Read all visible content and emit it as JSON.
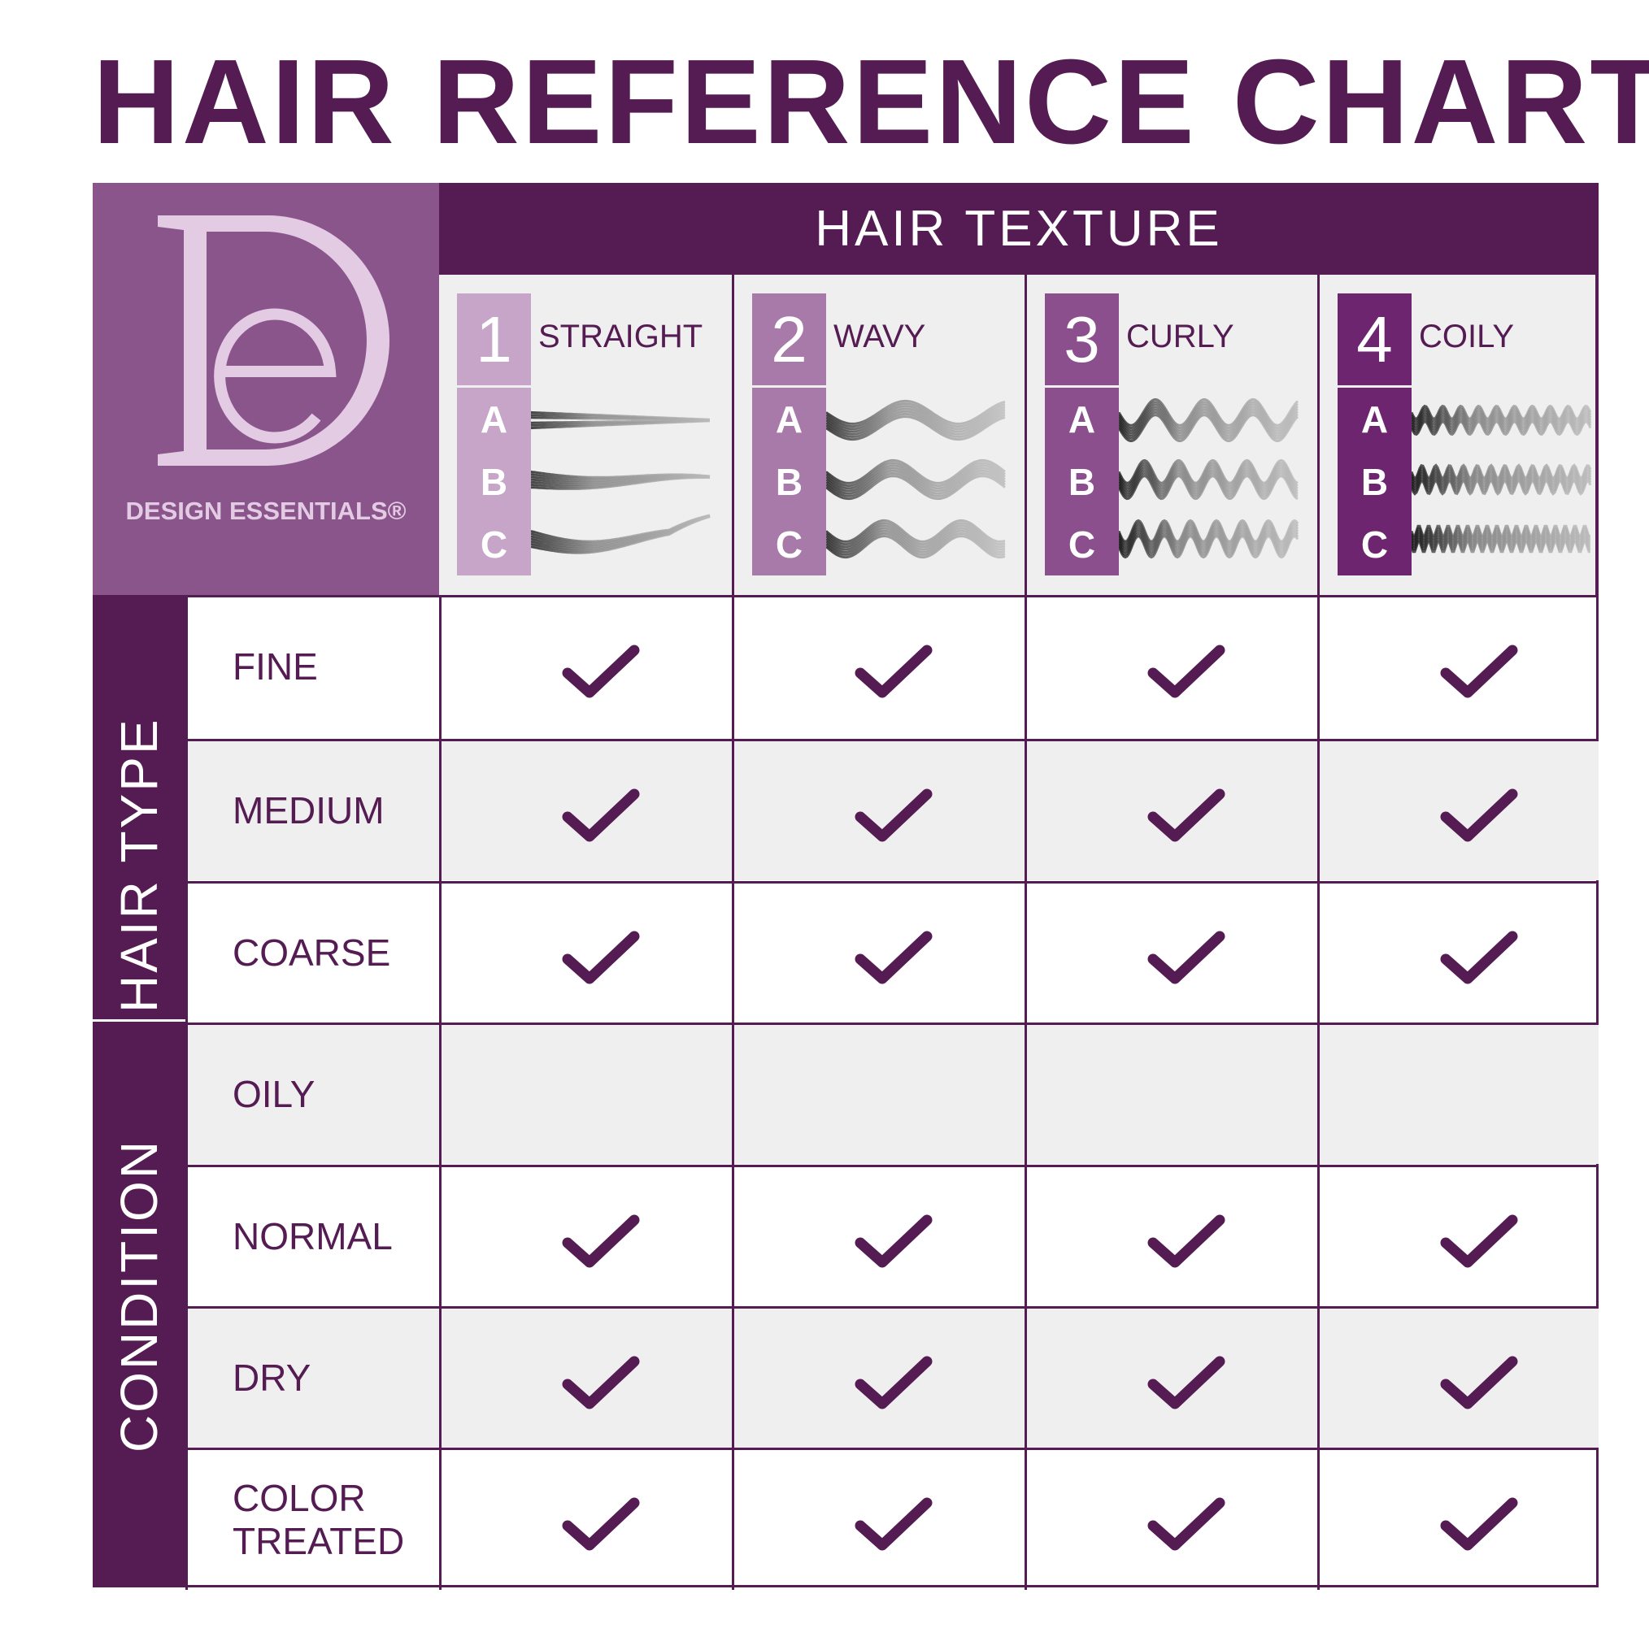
{
  "title": "HAIR REFERENCE CHART",
  "brand": {
    "monogram": "DE",
    "name": "DESIGN ESSENTIALS®"
  },
  "colors": {
    "primary": "#541c52",
    "logo_bg": "#8a558b",
    "type1": "#c6a5c8",
    "type2": "#a87aaa",
    "type3": "#8a4f8c",
    "type4": "#6e2570",
    "row_alt": "#efefef"
  },
  "texture_header": "HAIR TEXTURE",
  "textures": [
    {
      "number": "1",
      "label": "STRAIGHT",
      "subtypes": [
        "A",
        "B",
        "C"
      ],
      "pattern": "straight"
    },
    {
      "number": "2",
      "label": "WAVY",
      "subtypes": [
        "A",
        "B",
        "C"
      ],
      "pattern": "wavy"
    },
    {
      "number": "3",
      "label": "CURLY",
      "subtypes": [
        "A",
        "B",
        "C"
      ],
      "pattern": "curly"
    },
    {
      "number": "4",
      "label": "COILY",
      "subtypes": [
        "A",
        "B",
        "C"
      ],
      "pattern": "coily"
    }
  ],
  "groups": [
    {
      "label": "HAIR TYPE",
      "rows": [
        {
          "label": "FINE",
          "checks": [
            true,
            true,
            true,
            true
          ]
        },
        {
          "label": "MEDIUM",
          "checks": [
            true,
            true,
            true,
            true
          ]
        },
        {
          "label": "COARSE",
          "checks": [
            true,
            true,
            true,
            true
          ]
        }
      ]
    },
    {
      "label": "CONDITION",
      "rows": [
        {
          "label": "OILY",
          "checks": [
            false,
            false,
            false,
            false
          ]
        },
        {
          "label": "NORMAL",
          "checks": [
            true,
            true,
            true,
            true
          ]
        },
        {
          "label": "DRY",
          "checks": [
            true,
            true,
            true,
            true
          ]
        },
        {
          "label": "COLOR\nTREATED",
          "checks": [
            true,
            true,
            true,
            true
          ]
        }
      ]
    }
  ]
}
